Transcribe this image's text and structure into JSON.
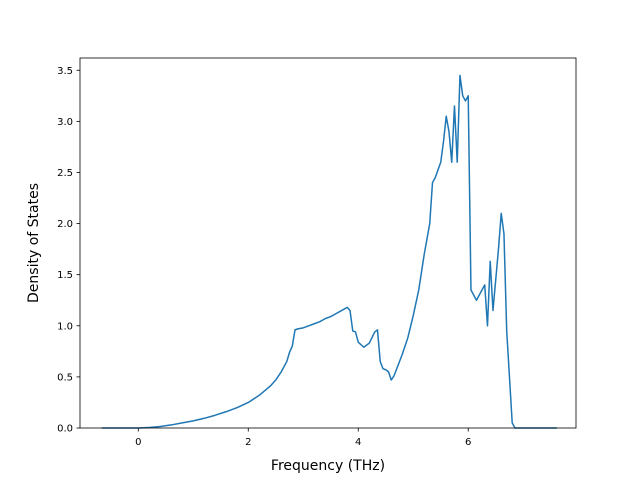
{
  "chart_data": {
    "type": "line",
    "title": "",
    "xlabel": "Frequency (THz)",
    "ylabel": "Density of States",
    "xlim": [
      -1.06,
      7.96
    ],
    "ylim": [
      0,
      3.62
    ],
    "x_ticks": [
      0,
      2,
      4,
      6
    ],
    "x_tick_labels": [
      "0",
      "2",
      "4",
      "6"
    ],
    "y_ticks": [
      0.0,
      0.5,
      1.0,
      1.5,
      2.0,
      2.5,
      3.0,
      3.5
    ],
    "y_tick_labels": [
      "0.0",
      "0.5",
      "1.0",
      "1.5",
      "2.0",
      "2.5",
      "3.0",
      "3.5"
    ],
    "grid": false,
    "colors": {
      "line": "#1f77b4",
      "axes": "#000000",
      "background": "#ffffff"
    },
    "series": [
      {
        "x": [
          -0.65,
          0.0,
          0.2,
          0.4,
          0.6,
          0.8,
          1.0,
          1.2,
          1.4,
          1.6,
          1.8,
          2.0,
          2.2,
          2.4,
          2.5,
          2.6,
          2.7,
          2.75,
          2.8,
          2.85,
          2.9,
          3.0,
          3.1,
          3.2,
          3.3,
          3.4,
          3.5,
          3.6,
          3.7,
          3.8,
          3.85,
          3.9,
          3.95,
          4.0,
          4.1,
          4.2,
          4.3,
          4.35,
          4.4,
          4.45,
          4.5,
          4.55,
          4.6,
          4.65,
          4.7,
          4.8,
          4.9,
          5.0,
          5.1,
          5.2,
          5.3,
          5.35,
          5.4,
          5.5,
          5.55,
          5.6,
          5.65,
          5.7,
          5.75,
          5.8,
          5.85,
          5.9,
          5.95,
          6.0,
          6.05,
          6.1,
          6.15,
          6.2,
          6.3,
          6.35,
          6.4,
          6.45,
          6.5,
          6.55,
          6.6,
          6.65,
          6.7,
          6.75,
          6.8,
          6.85,
          6.9,
          7.0,
          7.2,
          7.4,
          7.6
        ],
        "y": [
          0.0,
          0.0,
          0.005,
          0.015,
          0.03,
          0.05,
          0.07,
          0.095,
          0.125,
          0.16,
          0.2,
          0.25,
          0.32,
          0.41,
          0.47,
          0.55,
          0.65,
          0.74,
          0.8,
          0.96,
          0.97,
          0.98,
          1.0,
          1.02,
          1.04,
          1.07,
          1.09,
          1.12,
          1.15,
          1.18,
          1.15,
          0.95,
          0.94,
          0.84,
          0.79,
          0.83,
          0.94,
          0.96,
          0.65,
          0.58,
          0.57,
          0.55,
          0.47,
          0.51,
          0.58,
          0.72,
          0.88,
          1.1,
          1.35,
          1.7,
          2.0,
          2.4,
          2.45,
          2.6,
          2.8,
          3.05,
          2.9,
          2.6,
          3.15,
          2.6,
          3.45,
          3.25,
          3.2,
          3.25,
          1.35,
          1.3,
          1.25,
          1.3,
          1.4,
          1.0,
          1.63,
          1.15,
          1.45,
          1.75,
          2.1,
          1.9,
          0.95,
          0.5,
          0.05,
          0.0,
          0.0,
          0.0,
          0.0,
          0.0,
          0.0
        ]
      }
    ]
  }
}
